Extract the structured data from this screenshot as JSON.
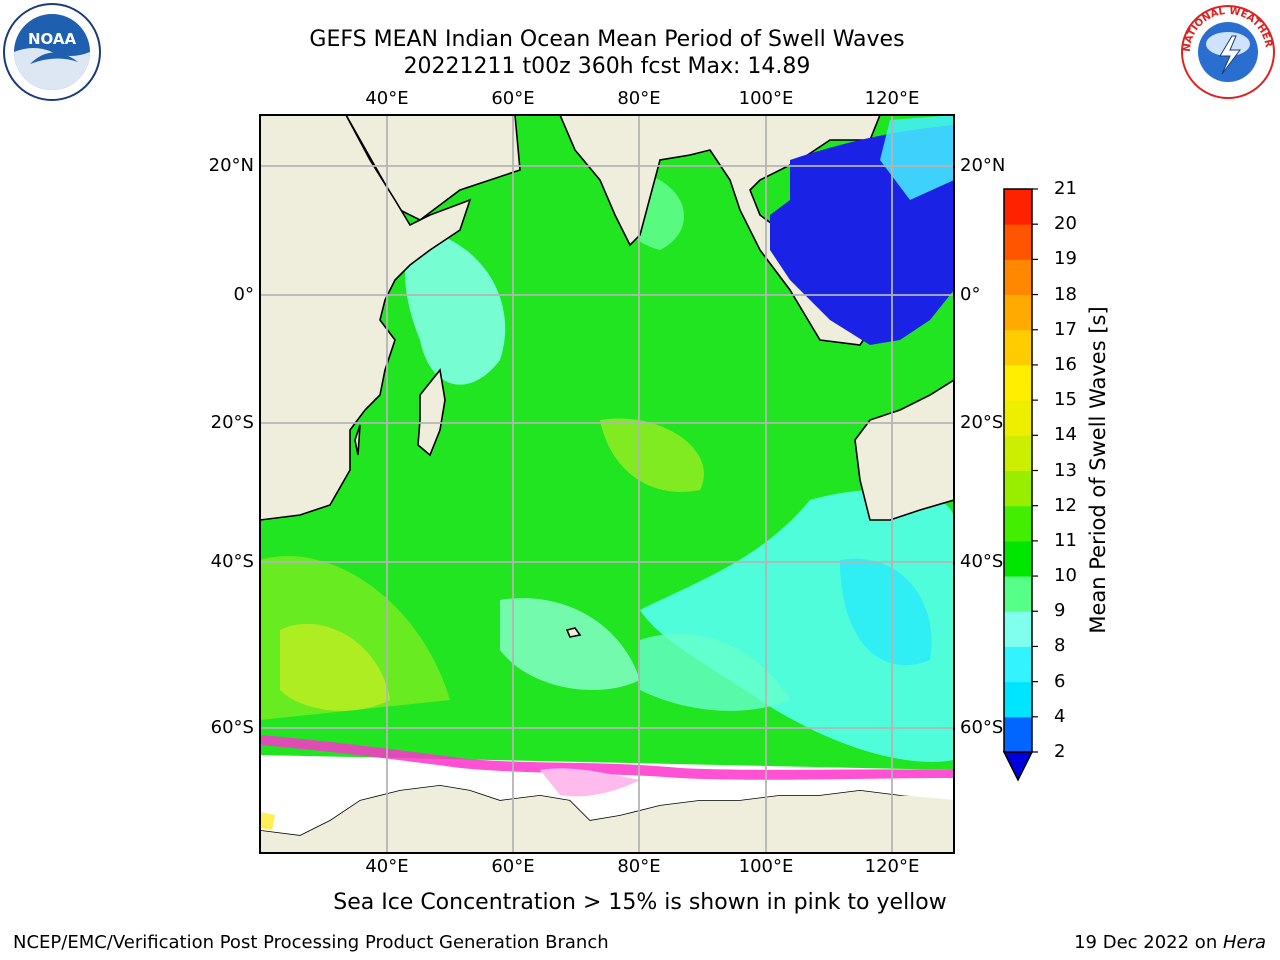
{
  "header": {
    "title_line1": "GEFS MEAN Indian Ocean Mean Period of Swell Waves",
    "title_line2": "20221211 t00z 360h fcst   Max: 14.89"
  },
  "logos": {
    "left": {
      "name": "noaa-logo",
      "text": "NOAA"
    },
    "right": {
      "name": "nws-logo",
      "text": "NATIONAL WEATHER SERVICE"
    }
  },
  "map": {
    "lon_labels_top": [
      "40°E",
      "60°E",
      "80°E",
      "100°E",
      "120°E"
    ],
    "lon_labels_bottom": [
      "40°E",
      "60°E",
      "80°E",
      "100°E",
      "120°E"
    ],
    "lat_labels_left": [
      "20°N",
      "0°",
      "20°S",
      "40°S",
      "60°S"
    ],
    "lat_labels_right": [
      "20°N",
      "0°",
      "20°S",
      "40°S",
      "60°S"
    ],
    "land_color": "#efeedc",
    "grid_color": "#b4b4b4"
  },
  "colorbar": {
    "title": "Mean Period of Swell Waves [s]",
    "ticks": [
      "2",
      "4",
      "6",
      "8",
      "9",
      "10",
      "11",
      "12",
      "13",
      "14",
      "15",
      "16",
      "17",
      "18",
      "19",
      "20",
      "21"
    ],
    "colors": [
      "#0066ff",
      "#00e5ff",
      "#33f3ff",
      "#80ffee",
      "#55ff88",
      "#00e600",
      "#44ee00",
      "#99ee00",
      "#ccee00",
      "#eeee00",
      "#ffee00",
      "#ffcc00",
      "#ffaa00",
      "#ff8800",
      "#ff5500",
      "#ff2200"
    ],
    "extend_color": "#0000dd"
  },
  "notes": {
    "ice": "Sea Ice Concentration > 15% is shown in pink to yellow"
  },
  "footer": {
    "left": "NCEP/EMC/Verification Post Processing Product Generation Branch",
    "date": "19 Dec 2022 on ",
    "machine": "Hera"
  }
}
